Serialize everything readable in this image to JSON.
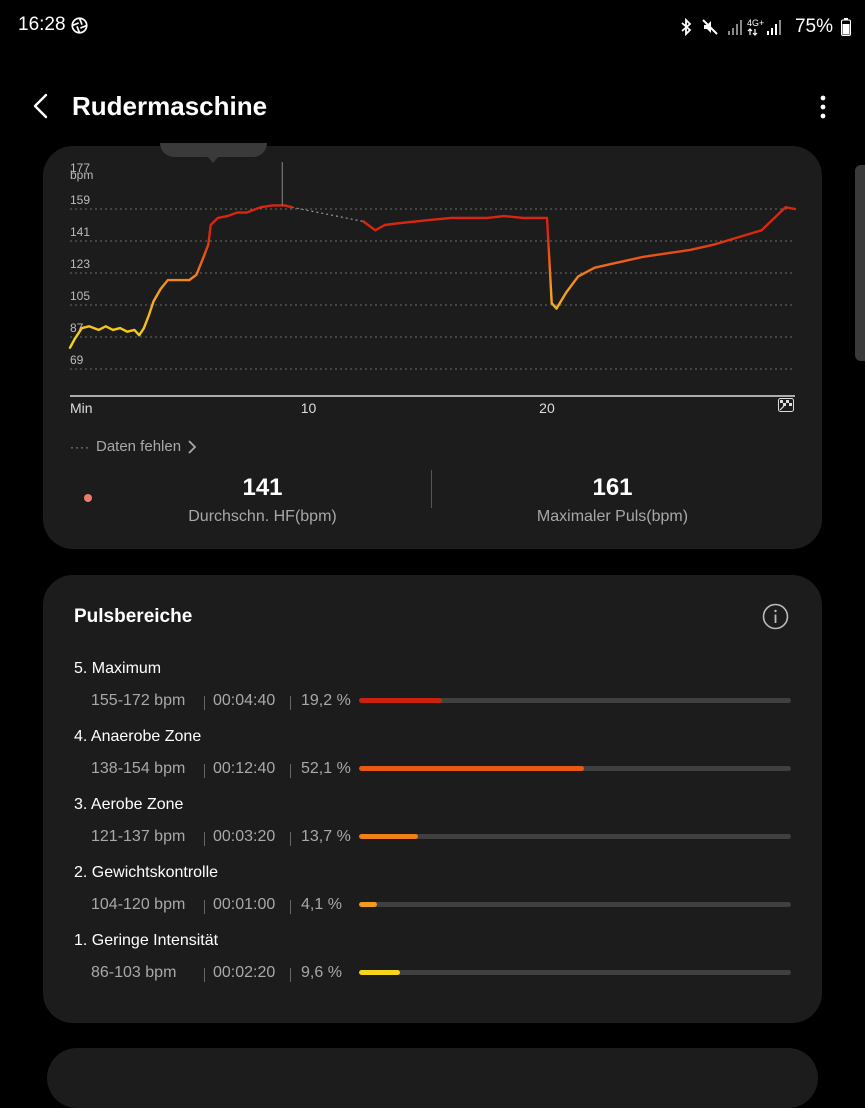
{
  "status_bar": {
    "time": "16:28",
    "battery": "75%",
    "network": "4G+",
    "icons": [
      "aperture-icon",
      "bluetooth-icon",
      "mute-icon",
      "signal-icon",
      "battery-icon"
    ]
  },
  "header": {
    "title": "Rudermaschine",
    "back_icon": "back-arrow-icon",
    "more_icon": "more-vertical-icon"
  },
  "heart_rate_card": {
    "missing_data_label": "Daten fehlen",
    "avg_value": "141",
    "avg_label": "Durchschn. HF(bpm)",
    "max_value": "161",
    "max_label": "Maximaler Puls(bpm)",
    "dot_color": "#f07b6a"
  },
  "chart_data": {
    "type": "line",
    "ylabel": "bpm",
    "xlabel": "",
    "yticks": [
      69,
      87,
      105,
      123,
      141,
      159,
      177
    ],
    "ylim": [
      60,
      177
    ],
    "xticks": [
      {
        "value": 0,
        "label": "Min"
      },
      {
        "value": 10,
        "label": "10"
      },
      {
        "value": 20,
        "label": "20"
      }
    ],
    "xlim": [
      0,
      30.4
    ],
    "grid": true,
    "series": [
      {
        "segments": [
          [
            [
              0,
              81
            ],
            [
              0.2,
              86
            ],
            [
              0.5,
              92
            ],
            [
              0.8,
              93
            ],
            [
              1.2,
              91
            ],
            [
              1.5,
              93
            ],
            [
              1.8,
              91
            ],
            [
              2.1,
              92
            ],
            [
              2.4,
              90
            ],
            [
              2.7,
              91
            ],
            [
              2.9,
              88
            ],
            [
              3.1,
              92
            ],
            [
              3.3,
              99
            ],
            [
              3.5,
              107
            ],
            [
              3.8,
              114
            ],
            [
              4.1,
              119
            ],
            [
              4.6,
              119
            ],
            [
              5.0,
              119
            ],
            [
              5.3,
              122
            ],
            [
              5.6,
              132
            ],
            [
              5.8,
              139
            ],
            [
              5.9,
              150
            ],
            [
              6.2,
              154
            ],
            [
              6.6,
              155
            ],
            [
              7.0,
              157
            ],
            [
              7.4,
              157
            ],
            [
              7.8,
              159
            ],
            [
              8.0,
              160
            ],
            [
              8.5,
              161
            ],
            [
              9.0,
              161
            ],
            [
              9.3,
              160
            ]
          ],
          [
            [
              12.3,
              152
            ],
            [
              12.8,
              147
            ],
            [
              13.2,
              150
            ],
            [
              13.8,
              151
            ],
            [
              14.5,
              152
            ],
            [
              15.2,
              153
            ],
            [
              16.0,
              154
            ],
            [
              16.8,
              154
            ],
            [
              17.5,
              154
            ],
            [
              18.2,
              155
            ],
            [
              19.0,
              154
            ],
            [
              19.6,
              154
            ],
            [
              20.0,
              154
            ],
            [
              20.1,
              130
            ],
            [
              20.2,
              106
            ],
            [
              20.4,
              103
            ],
            [
              20.8,
              112
            ],
            [
              21.3,
              121
            ],
            [
              22.0,
              126
            ],
            [
              23.0,
              129
            ],
            [
              24.0,
              132
            ],
            [
              25.0,
              134
            ],
            [
              26.0,
              136
            ],
            [
              27.0,
              139
            ],
            [
              28.0,
              143
            ],
            [
              29.0,
              147
            ],
            [
              30.0,
              160
            ],
            [
              30.4,
              159
            ]
          ]
        ],
        "gap": [
          [
            9.3,
            160
          ],
          [
            12.3,
            152
          ]
        ]
      }
    ],
    "annotations": [
      "marker-line at x=8.9"
    ]
  },
  "zones_card": {
    "title": "Pulsbereiche",
    "info_icon": "info-icon",
    "zones": [
      {
        "name": "5. Maximum",
        "range": "155-172 bpm",
        "time": "00:04:40",
        "pct_text": "19,2 %",
        "pct": 19.2,
        "color": "#c9220e"
      },
      {
        "name": "4. Anaerobe Zone",
        "range": "138-154 bpm",
        "time": "00:12:40",
        "pct_text": "52,1 %",
        "pct": 52.1,
        "color": "#e85a13"
      },
      {
        "name": "3. Aerobe Zone",
        "range": "121-137 bpm",
        "time": "00:03:20",
        "pct_text": "13,7 %",
        "pct": 13.7,
        "color": "#f07e1a"
      },
      {
        "name": "2. Gewichtskontrolle",
        "range": "104-120 bpm",
        "time": "00:01:00",
        "pct_text": "4,1 %",
        "pct": 4.1,
        "color": "#f49a1f"
      },
      {
        "name": "1. Geringe Intensität",
        "range": "86-103 bpm",
        "time": "00:02:20",
        "pct_text": "9,6 %",
        "pct": 9.6,
        "color": "#f5d51a"
      }
    ]
  }
}
